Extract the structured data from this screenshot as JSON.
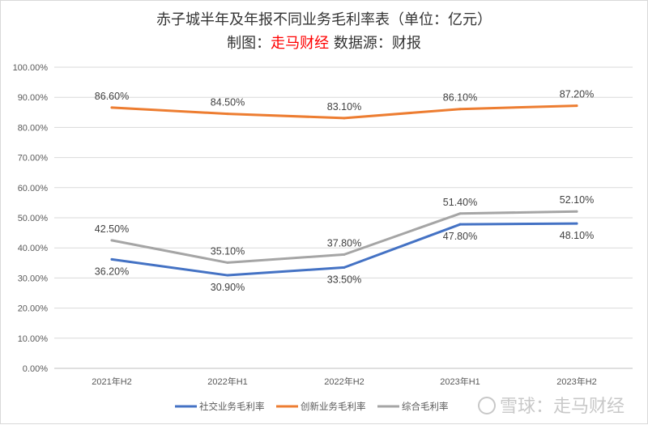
{
  "chart_data": {
    "type": "line",
    "title": "赤子城半年及年报不同业务毛利率表（单位：亿元）",
    "subtitle": {
      "prefix": "制图：",
      "brand": "走马财经",
      "suffix": " 数据源：财报"
    },
    "categories": [
      "2021年H2",
      "2022年H1",
      "2022年H2",
      "2023年H1",
      "2023年H2"
    ],
    "ylim": [
      0,
      100
    ],
    "yticks": [
      "0.00%",
      "10.00%",
      "20.00%",
      "30.00%",
      "40.00%",
      "50.00%",
      "60.00%",
      "70.00%",
      "80.00%",
      "90.00%",
      "100.00%"
    ],
    "grid": true,
    "legend_position": "bottom",
    "series": [
      {
        "name": "社交业务毛利率",
        "color": "#4472C4",
        "values": [
          36.2,
          30.9,
          33.5,
          47.8,
          48.1
        ],
        "labels": [
          "36.20%",
          "30.90%",
          "33.50%",
          "47.80%",
          "48.10%"
        ]
      },
      {
        "name": "创新业务毛利率",
        "color": "#ED7D31",
        "values": [
          86.6,
          84.5,
          83.1,
          86.1,
          87.2
        ],
        "labels": [
          "86.60%",
          "84.50%",
          "83.10%",
          "86.10%",
          "87.20%"
        ]
      },
      {
        "name": "综合毛利率",
        "color": "#A5A5A5",
        "values": [
          42.5,
          35.1,
          37.8,
          51.4,
          52.1
        ],
        "labels": [
          "42.50%",
          "35.10%",
          "37.80%",
          "51.40%",
          "52.10%"
        ]
      }
    ]
  },
  "watermark": "雪球：走马财经",
  "colors": {
    "brand": "#ff0000"
  }
}
